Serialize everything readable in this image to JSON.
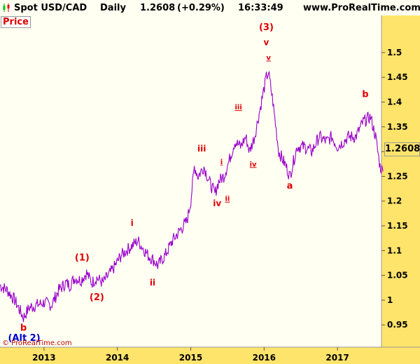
{
  "header": {
    "instrument": "Spot USD/CAD",
    "period": "Daily",
    "price": "1.2608",
    "change": "(+0.29%)",
    "time": "16:33:49",
    "site": "www.ProRealTime.com"
  },
  "panel_label": "Price",
  "current_value": "1.2608",
  "watermark": "© ProRealTime.com",
  "colors": {
    "line": "#9900cc",
    "wave": "#e00000",
    "alt": "#0000cc",
    "background": "#fffff2",
    "axis": "#ffe46b"
  },
  "chart_data": {
    "type": "line",
    "title": "",
    "xlabel": "",
    "ylabel": "",
    "ylim": [
      0.905,
      1.575
    ],
    "xlim": [
      2012.4,
      2017.6
    ],
    "y_ticks": [
      0.95,
      1,
      1.05,
      1.1,
      1.15,
      1.2,
      1.25,
      1.3,
      1.35,
      1.4,
      1.45,
      1.5
    ],
    "y_tick_labels": [
      "0.95",
      "1",
      "1.05",
      "1.1",
      "1.15",
      "1.2",
      "1.25",
      "1.3",
      "1.35",
      "1.4",
      "1.45",
      "1.5"
    ],
    "x_ticks": [
      2013,
      2014,
      2015,
      2016,
      2017
    ],
    "x_tick_labels": [
      "2013",
      "2014",
      "2015",
      "2016",
      "2017"
    ],
    "grid": false,
    "series": [
      {
        "x": [
          2012.4,
          2012.5,
          2012.6,
          2012.72,
          2012.8,
          2012.9,
          2013.0,
          2013.1,
          2013.2,
          2013.3,
          2013.35,
          2013.42,
          2013.5,
          2013.58,
          2013.65,
          2013.72,
          2013.8,
          2013.88,
          2013.95,
          2014.05,
          2014.12,
          2014.2,
          2014.28,
          2014.35,
          2014.42,
          2014.5,
          2014.55,
          2014.65,
          2014.75,
          2014.85,
          2014.95,
          2015.0,
          2015.05,
          2015.1,
          2015.18,
          2015.25,
          2015.33,
          2015.38,
          2015.45,
          2015.52,
          2015.6,
          2015.68,
          2015.75,
          2015.8,
          2015.87,
          2015.95,
          2016.03,
          2016.06,
          2016.12,
          2016.2,
          2016.3,
          2016.35,
          2016.45,
          2016.55,
          2016.65,
          2016.75,
          2016.85,
          2016.92,
          2017.0,
          2017.08,
          2017.15,
          2017.25,
          2017.35,
          2017.45,
          2017.52,
          2017.58,
          2017.62
        ],
        "y": [
          1.03,
          1.02,
          1.0,
          0.965,
          0.985,
          0.99,
          0.995,
          0.99,
          1.02,
          1.035,
          1.03,
          1.045,
          1.04,
          1.055,
          1.035,
          1.045,
          1.035,
          1.05,
          1.065,
          1.09,
          1.1,
          1.11,
          1.12,
          1.105,
          1.09,
          1.08,
          1.07,
          1.09,
          1.12,
          1.14,
          1.16,
          1.2,
          1.27,
          1.25,
          1.27,
          1.24,
          1.215,
          1.24,
          1.25,
          1.28,
          1.32,
          1.31,
          1.33,
          1.3,
          1.33,
          1.39,
          1.45,
          1.46,
          1.4,
          1.3,
          1.27,
          1.25,
          1.31,
          1.31,
          1.3,
          1.33,
          1.32,
          1.33,
          1.31,
          1.32,
          1.33,
          1.33,
          1.36,
          1.37,
          1.33,
          1.27,
          1.26
        ]
      }
    ],
    "annotations": [
      {
        "text": "(3)",
        "x": 2016.03,
        "y": 1.545,
        "color": "wave",
        "size": 13
      },
      {
        "text": "v",
        "x": 2016.03,
        "y": 1.515,
        "color": "wave",
        "size": 12
      },
      {
        "text": "v",
        "x": 2016.06,
        "y": 1.485,
        "color": "wave",
        "size": 10,
        "underline": true
      },
      {
        "text": "iii",
        "x": 2015.15,
        "y": 1.3,
        "color": "wave",
        "size": 12
      },
      {
        "text": "iii",
        "x": 2015.65,
        "y": 1.385,
        "color": "wave",
        "size": 10,
        "underline": true
      },
      {
        "text": "i",
        "x": 2015.42,
        "y": 1.275,
        "color": "wave",
        "size": 10,
        "underline": true
      },
      {
        "text": "iv",
        "x": 2015.85,
        "y": 1.27,
        "color": "wave",
        "size": 10,
        "underline": true
      },
      {
        "text": "ii",
        "x": 2015.5,
        "y": 1.2,
        "color": "wave",
        "size": 10,
        "underline": true
      },
      {
        "text": "iv",
        "x": 2015.36,
        "y": 1.19,
        "color": "wave",
        "size": 12
      },
      {
        "text": "a",
        "x": 2016.35,
        "y": 1.225,
        "color": "wave",
        "size": 13
      },
      {
        "text": "b",
        "x": 2017.38,
        "y": 1.41,
        "color": "wave",
        "size": 13
      },
      {
        "text": "i",
        "x": 2014.2,
        "y": 1.15,
        "color": "wave",
        "size": 12
      },
      {
        "text": "ii",
        "x": 2014.48,
        "y": 1.03,
        "color": "wave",
        "size": 12
      },
      {
        "text": "(1)",
        "x": 2013.52,
        "y": 1.08,
        "color": "wave",
        "size": 13
      },
      {
        "text": "(2)",
        "x": 2013.72,
        "y": 1.0,
        "color": "wave",
        "size": 13
      },
      {
        "text": "b",
        "x": 2012.72,
        "y": 0.938,
        "color": "wave",
        "size": 13
      },
      {
        "text": "(Alt 2)",
        "x": 2012.73,
        "y": 0.918,
        "color": "alt",
        "size": 13
      }
    ]
  }
}
